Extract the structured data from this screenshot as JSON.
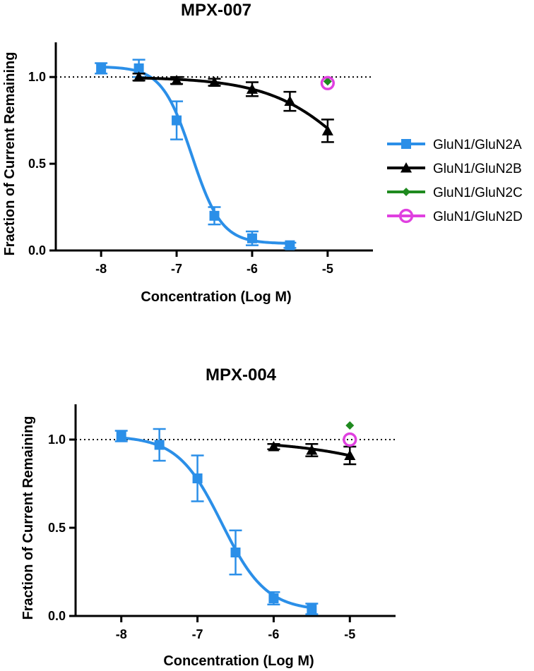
{
  "chart_data": [
    {
      "type": "line",
      "title": "MPX-007",
      "xlabel": "Concentration (Log M)",
      "ylabel": "Fraction of Current Remaining",
      "xlim": [
        -8.6,
        -4.4
      ],
      "ylim": [
        0.0,
        1.2
      ],
      "xticks": [
        "-8",
        "-7",
        "-6",
        "-5"
      ],
      "yticks": [
        "0.0",
        "0.5",
        "1.0"
      ],
      "reference_line": 1.0,
      "series": [
        {
          "name": "GluN1/GluN2A",
          "color": "#2b8fe8",
          "marker": "square",
          "x": [
            -8,
            -7.5,
            -7,
            -6.5,
            -6,
            -5.5
          ],
          "y": [
            1.05,
            1.05,
            0.75,
            0.2,
            0.07,
            0.03
          ],
          "err": [
            0.03,
            0.05,
            0.11,
            0.05,
            0.04,
            0.015
          ],
          "fit": {
            "top": 1.06,
            "bottom": 0.04,
            "logIC50": -6.8,
            "hill": 2.2
          }
        },
        {
          "name": "GluN1/GluN2B",
          "color": "#000000",
          "marker": "triangle",
          "x": [
            -7.5,
            -7,
            -6.5,
            -6,
            -5.5,
            -5
          ],
          "y": [
            1.0,
            0.98,
            0.97,
            0.93,
            0.86,
            0.69
          ],
          "err": [
            0.02,
            0.02,
            0.02,
            0.04,
            0.055,
            0.065
          ],
          "fit": {
            "top": 1.0,
            "bottom": 0.0,
            "logIC50": -4.5,
            "hill": 0.75
          }
        },
        {
          "name": "GluN1/GluN2C",
          "color": "#1f8a1f",
          "marker": "diamond",
          "x": [
            -5
          ],
          "y": [
            0.975
          ],
          "err": [
            0
          ]
        },
        {
          "name": "GluN1/GluN2D",
          "color": "#e040e0",
          "marker": "circle-open",
          "x": [
            -5
          ],
          "y": [
            0.965
          ],
          "err": [
            0
          ]
        }
      ]
    },
    {
      "type": "line",
      "title": "MPX-004",
      "xlabel": "Concentration (Log M)",
      "ylabel": "Fraction of Current Remaining",
      "xlim": [
        -8.6,
        -4.4
      ],
      "ylim": [
        0.0,
        1.2
      ],
      "xticks": [
        "-8",
        "-7",
        "-6",
        "-5"
      ],
      "yticks": [
        "0.0",
        "0.5",
        "1.0"
      ],
      "reference_line": 1.0,
      "series": [
        {
          "name": "GluN1/GluN2A",
          "color": "#2b8fe8",
          "marker": "square",
          "x": [
            -8,
            -7.5,
            -7,
            -6.5,
            -6,
            -5.5
          ],
          "y": [
            1.02,
            0.97,
            0.78,
            0.36,
            0.1,
            0.04
          ],
          "err": [
            0.03,
            0.09,
            0.13,
            0.125,
            0.035,
            0.03
          ],
          "fit": {
            "top": 1.02,
            "bottom": 0.03,
            "logIC50": -6.68,
            "hill": 1.5
          }
        },
        {
          "name": "GluN1/GluN2B",
          "color": "#000000",
          "marker": "triangle",
          "x": [
            -6,
            -5.5,
            -5
          ],
          "y": [
            0.96,
            0.94,
            0.91
          ],
          "err": [
            0.015,
            0.035,
            0.05
          ],
          "fit": {
            "top": 1.0,
            "bottom": 0.0,
            "logIC50": -3.0,
            "hill": 0.5
          }
        },
        {
          "name": "GluN1/GluN2C",
          "color": "#1f8a1f",
          "marker": "diamond",
          "x": [
            -5
          ],
          "y": [
            1.08
          ],
          "err": [
            0
          ]
        },
        {
          "name": "GluN1/GluN2D",
          "color": "#e040e0",
          "marker": "circle-open",
          "x": [
            -5
          ],
          "y": [
            1.0
          ],
          "err": [
            0
          ]
        }
      ]
    }
  ],
  "legend": [
    {
      "name": "GluN1/GluN2A",
      "color": "#2b8fe8",
      "marker": "square"
    },
    {
      "name": "GluN1/GluN2B",
      "color": "#000000",
      "marker": "triangle"
    },
    {
      "name": "GluN1/GluN2C",
      "color": "#1f8a1f",
      "marker": "diamond"
    },
    {
      "name": "GluN1/GluN2D",
      "color": "#e040e0",
      "marker": "circle-open"
    }
  ]
}
